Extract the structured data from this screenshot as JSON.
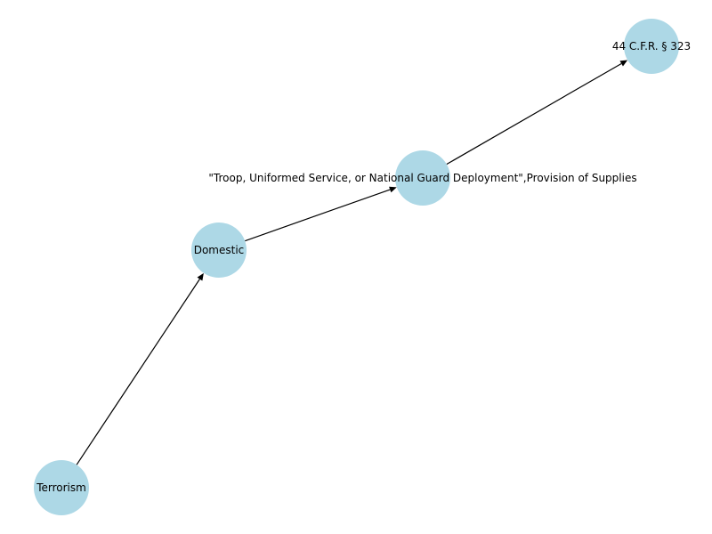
{
  "graph": {
    "directed": true,
    "node_color": "#add8e6",
    "edge_color": "#000000",
    "nodes": [
      {
        "id": "terrorism",
        "label": "Terrorism"
      },
      {
        "id": "domestic",
        "label": "Domestic"
      },
      {
        "id": "deployment",
        "label": "\"Troop, Uniformed Service, or National Guard Deployment\",Provision of Supplies"
      },
      {
        "id": "cfr",
        "label": "44 C.F.R. § 323"
      }
    ],
    "edges": [
      {
        "from": "terrorism",
        "to": "domestic"
      },
      {
        "from": "domestic",
        "to": "deployment"
      },
      {
        "from": "deployment",
        "to": "cfr"
      }
    ]
  }
}
